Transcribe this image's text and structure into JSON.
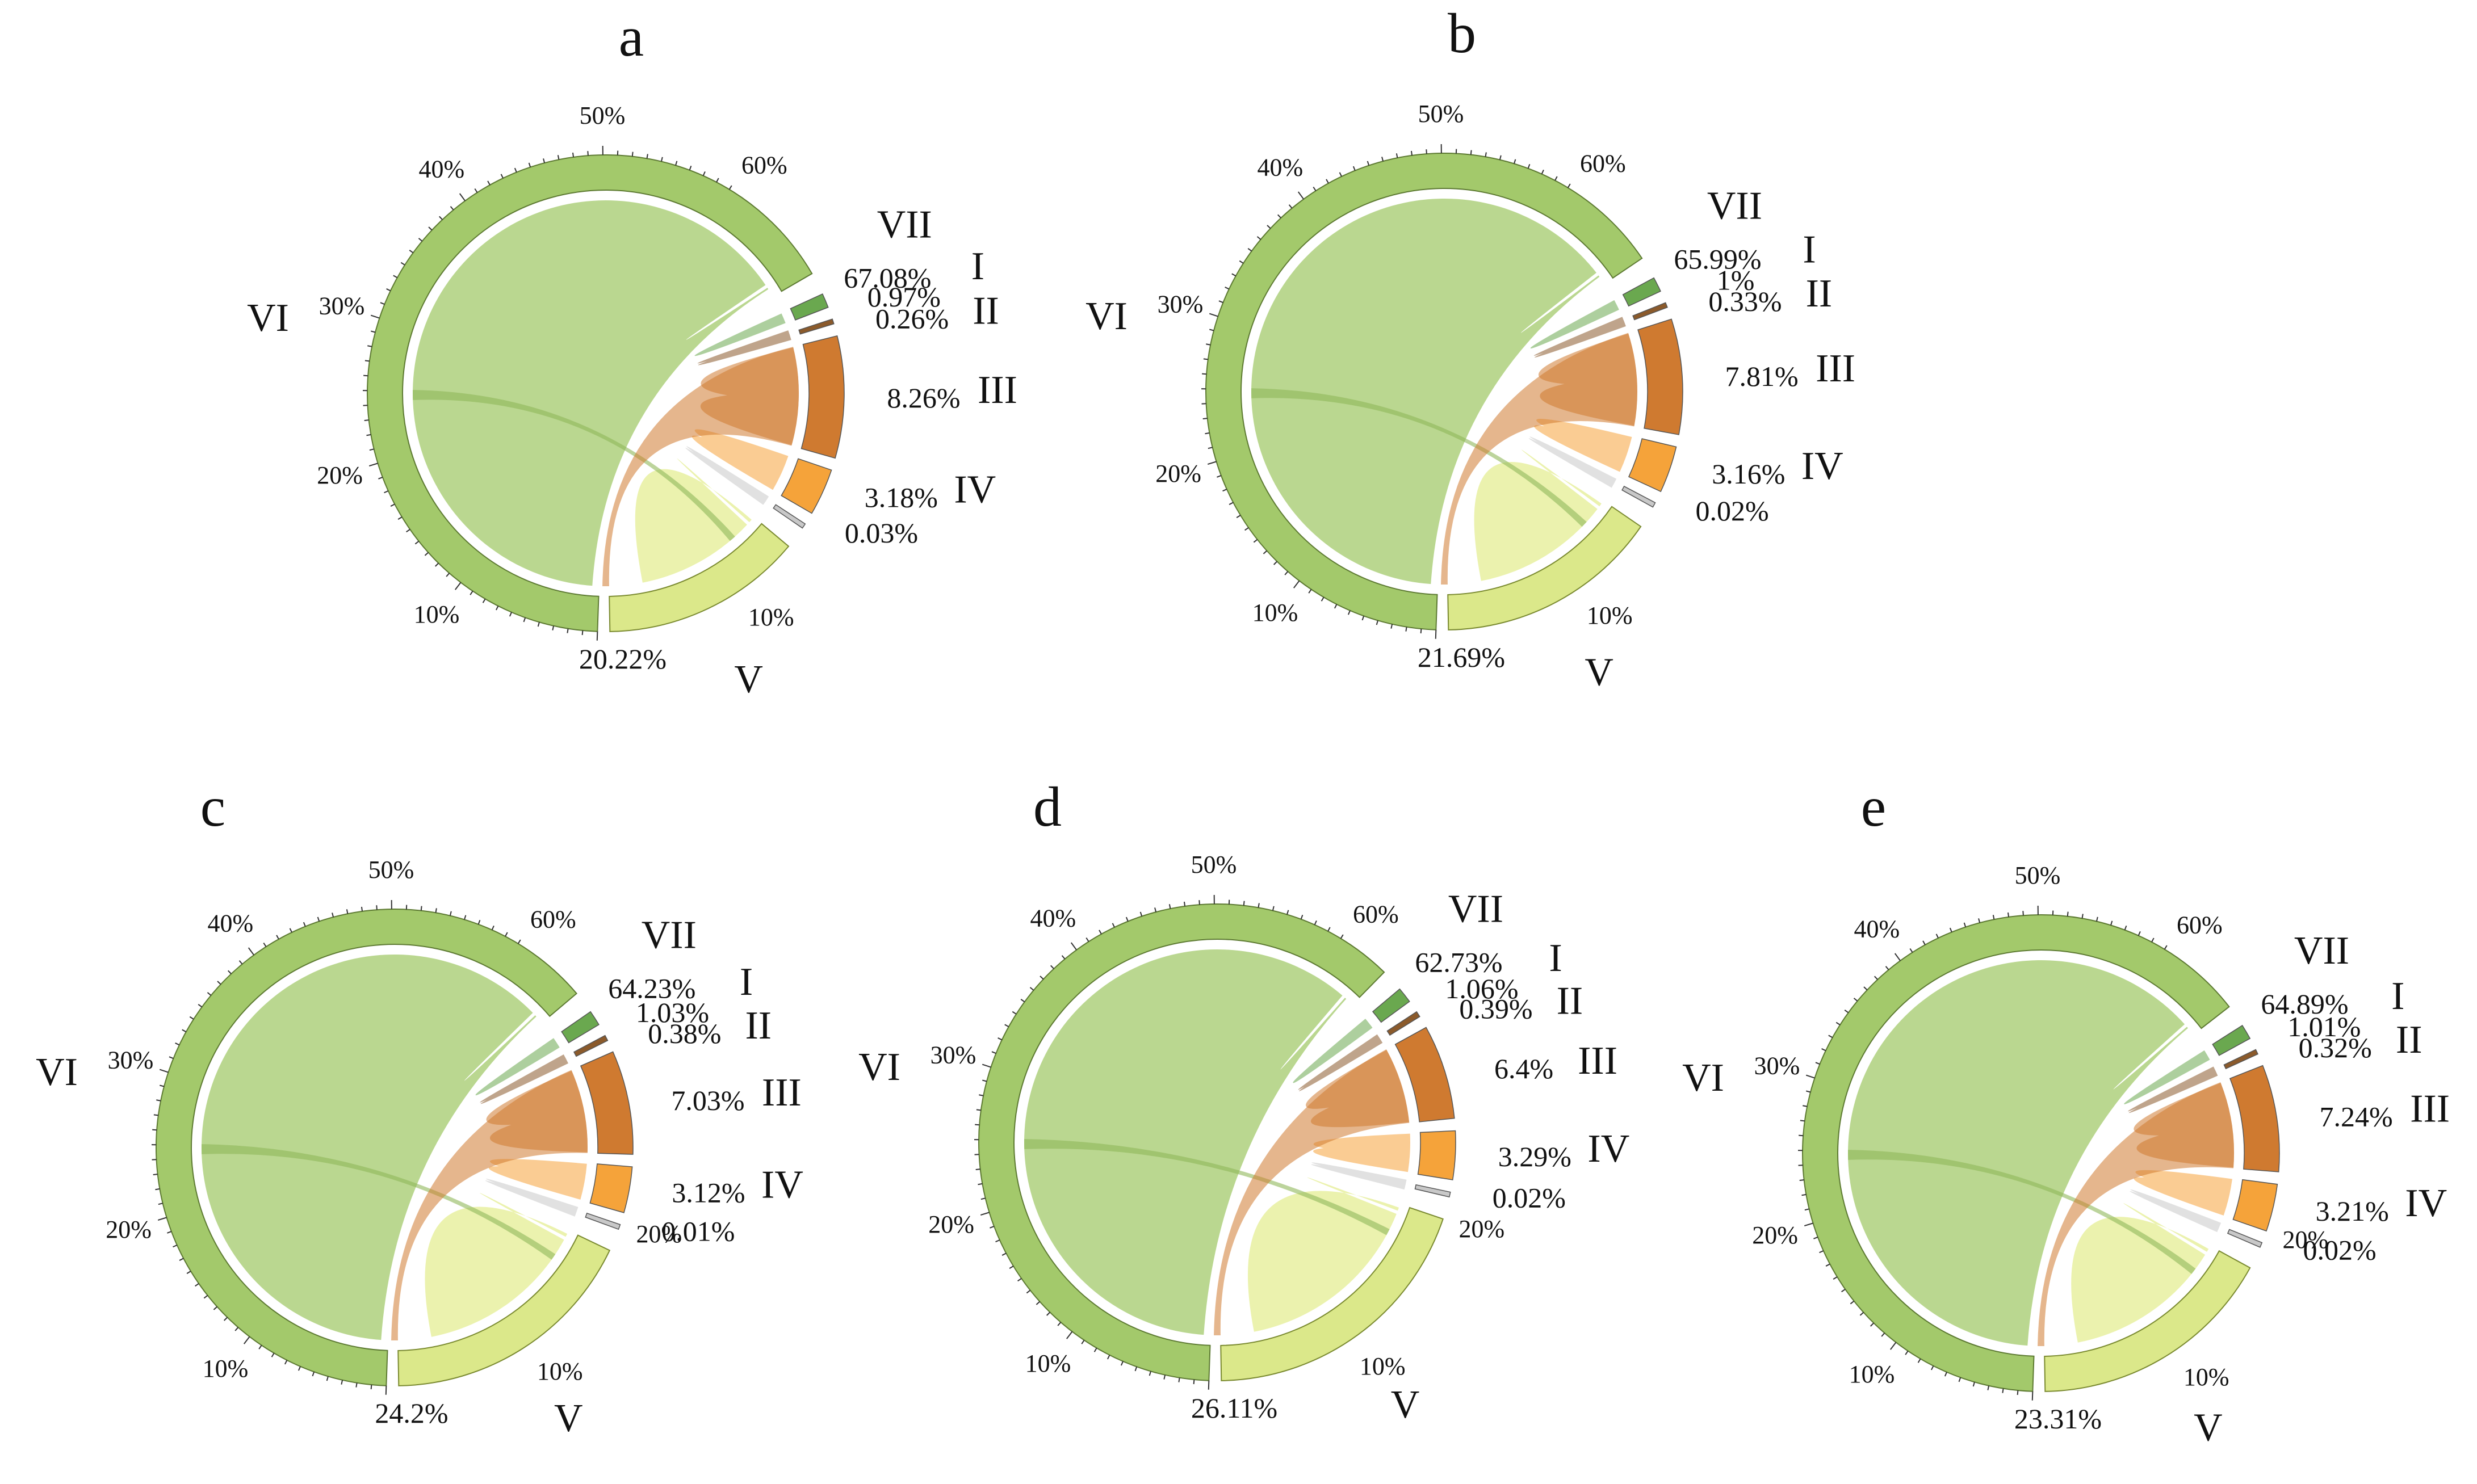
{
  "chart_data": [
    {
      "panel": "a",
      "type": "chord",
      "sectors": [
        {
          "id": "VII",
          "label": "VII",
          "pct": "67.08%",
          "value": 67.08,
          "color": "#a3c96b"
        },
        {
          "id": "I",
          "label": "I",
          "pct": "0.97%",
          "value": 0.97,
          "color": "#6aa84f"
        },
        {
          "id": "II",
          "label": "II",
          "pct": "0.26%",
          "value": 0.26,
          "color": "#8b5a2b"
        },
        {
          "id": "III",
          "label": "III",
          "pct": "8.26%",
          "value": 8.26,
          "color": "#cf7a30"
        },
        {
          "id": "IV",
          "label": "IV",
          "pct": "3.18%",
          "value": 3.18,
          "color": "#f5a33a"
        },
        {
          "id": "IV-b",
          "label": "",
          "pct": "0.03%",
          "value": 0.03,
          "color": "#c8c8c8"
        },
        {
          "id": "V",
          "label": "V",
          "pct": "20.22%",
          "value": 20.22,
          "color": "#dbe88a"
        }
      ],
      "sector_name_vi": "VI",
      "ticks_large": [
        "10%",
        "20%",
        "30%",
        "40%",
        "50%",
        "60%"
      ],
      "ticks_small": [
        "10%"
      ]
    },
    {
      "panel": "b",
      "type": "chord",
      "sectors": [
        {
          "id": "VII",
          "label": "VII",
          "pct": "65.99%",
          "value": 65.99,
          "color": "#a3c96b"
        },
        {
          "id": "I",
          "label": "I",
          "pct": "1%",
          "value": 1.0,
          "color": "#6aa84f"
        },
        {
          "id": "II",
          "label": "II",
          "pct": "0.33%",
          "value": 0.33,
          "color": "#8b5a2b"
        },
        {
          "id": "III",
          "label": "III",
          "pct": "7.81%",
          "value": 7.81,
          "color": "#cf7a30"
        },
        {
          "id": "IV",
          "label": "IV",
          "pct": "3.16%",
          "value": 3.16,
          "color": "#f5a33a"
        },
        {
          "id": "IV-b",
          "label": "",
          "pct": "0.02%",
          "value": 0.02,
          "color": "#c8c8c8"
        },
        {
          "id": "V",
          "label": "V",
          "pct": "21.69%",
          "value": 21.69,
          "color": "#dbe88a"
        }
      ],
      "sector_name_vi": "VI",
      "ticks_large": [
        "10%",
        "20%",
        "30%",
        "40%",
        "50%",
        "60%"
      ],
      "ticks_small": [
        "10%"
      ]
    },
    {
      "panel": "c",
      "type": "chord",
      "sectors": [
        {
          "id": "VII",
          "label": "VII",
          "pct": "64.23%",
          "value": 64.23,
          "color": "#a3c96b"
        },
        {
          "id": "I",
          "label": "I",
          "pct": "1.03%",
          "value": 1.03,
          "color": "#6aa84f"
        },
        {
          "id": "II",
          "label": "II",
          "pct": "0.38%",
          "value": 0.38,
          "color": "#8b5a2b"
        },
        {
          "id": "III",
          "label": "III",
          "pct": "7.03%",
          "value": 7.03,
          "color": "#cf7a30"
        },
        {
          "id": "IV",
          "label": "IV",
          "pct": "3.12%",
          "value": 3.12,
          "color": "#f5a33a"
        },
        {
          "id": "IV-b",
          "label": "",
          "pct": "0.01%",
          "value": 0.01,
          "color": "#c8c8c8"
        },
        {
          "id": "V",
          "label": "V",
          "pct": "24.2%",
          "value": 24.2,
          "color": "#dbe88a"
        }
      ],
      "sector_name_vi": "VI",
      "ticks_large": [
        "10%",
        "20%",
        "30%",
        "40%",
        "50%",
        "60%"
      ],
      "ticks_small": [
        "10%",
        "20%"
      ]
    },
    {
      "panel": "d",
      "type": "chord",
      "sectors": [
        {
          "id": "VII",
          "label": "VII",
          "pct": "62.73%",
          "value": 62.73,
          "color": "#a3c96b"
        },
        {
          "id": "I",
          "label": "I",
          "pct": "1.06%",
          "value": 1.06,
          "color": "#6aa84f"
        },
        {
          "id": "II",
          "label": "II",
          "pct": "0.39%",
          "value": 0.39,
          "color": "#8b5a2b"
        },
        {
          "id": "III",
          "label": "III",
          "pct": "6.4%",
          "value": 6.4,
          "color": "#cf7a30"
        },
        {
          "id": "IV",
          "label": "IV",
          "pct": "3.29%",
          "value": 3.29,
          "color": "#f5a33a"
        },
        {
          "id": "IV-b",
          "label": "",
          "pct": "0.02%",
          "value": 0.02,
          "color": "#c8c8c8"
        },
        {
          "id": "V",
          "label": "V",
          "pct": "26.11%",
          "value": 26.11,
          "color": "#dbe88a"
        }
      ],
      "sector_name_vi": "VI",
      "ticks_large": [
        "10%",
        "20%",
        "30%",
        "40%",
        "50%",
        "60%"
      ],
      "ticks_small": [
        "10%",
        "20%"
      ]
    },
    {
      "panel": "e",
      "type": "chord",
      "sectors": [
        {
          "id": "VII",
          "label": "VII",
          "pct": "64.89%",
          "value": 64.89,
          "color": "#a3c96b"
        },
        {
          "id": "I",
          "label": "I",
          "pct": "1.01%",
          "value": 1.01,
          "color": "#6aa84f"
        },
        {
          "id": "II",
          "label": "II",
          "pct": "0.32%",
          "value": 0.32,
          "color": "#8b5a2b"
        },
        {
          "id": "III",
          "label": "III",
          "pct": "7.24%",
          "value": 7.24,
          "color": "#cf7a30"
        },
        {
          "id": "IV",
          "label": "IV",
          "pct": "3.21%",
          "value": 3.21,
          "color": "#f5a33a"
        },
        {
          "id": "IV-b",
          "label": "",
          "pct": "0.02%",
          "value": 0.02,
          "color": "#c8c8c8"
        },
        {
          "id": "V",
          "label": "V",
          "pct": "23.31%",
          "value": 23.31,
          "color": "#dbe88a"
        }
      ],
      "sector_name_vi": "VI",
      "ticks_large": [
        "10%",
        "20%",
        "30%",
        "40%",
        "50%",
        "60%"
      ],
      "ticks_small": [
        "10%",
        "20%"
      ]
    }
  ]
}
